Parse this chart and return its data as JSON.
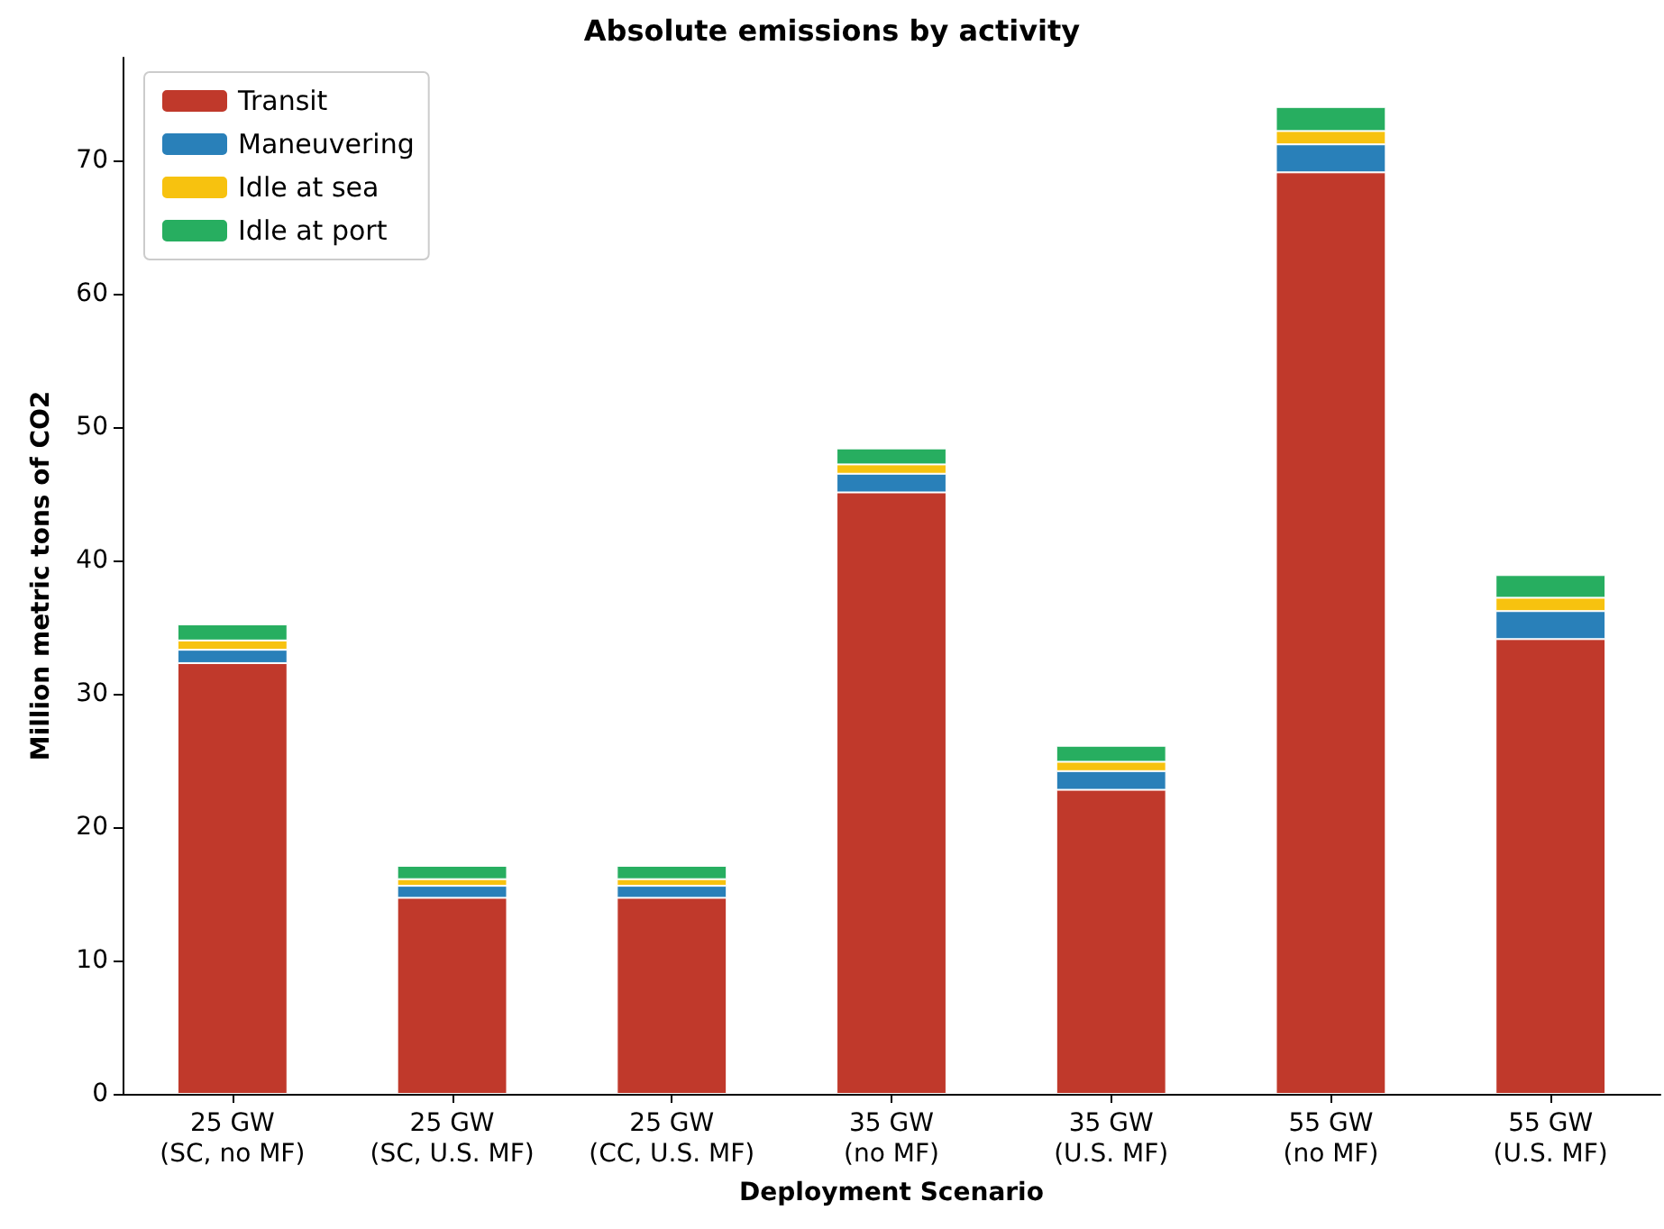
{
  "chart_data": {
    "type": "bar",
    "title": "Absolute emissions by activity",
    "xlabel": "Deployment Scenario",
    "ylabel": "Million metric tons of CO2",
    "categories": [
      "25 GW\n(SC, no MF)",
      "25 GW\n(SC, U.S. MF)",
      "25 GW\n(CC, U.S. MF)",
      "35 GW\n(no MF)",
      "35 GW\n(U.S. MF)",
      "55 GW\n(no MF)",
      "55 GW\n(U.S. MF)"
    ],
    "stacked": true,
    "series": [
      {
        "name": "Transit",
        "color": "#c0392b",
        "values": [
          32.3,
          14.7,
          14.7,
          45.1,
          22.8,
          69.1,
          34.1
        ]
      },
      {
        "name": "Maneuvering",
        "color": "#2980b9",
        "values": [
          1.0,
          0.9,
          0.9,
          1.4,
          1.4,
          2.1,
          2.1
        ]
      },
      {
        "name": "Idle at sea",
        "color": "#f7c20f",
        "values": [
          0.7,
          0.5,
          0.5,
          0.7,
          0.7,
          1.0,
          1.0
        ]
      },
      {
        "name": "Idle at port",
        "color": "#27ae60",
        "values": [
          1.2,
          1.0,
          1.0,
          1.2,
          1.2,
          1.8,
          1.7
        ]
      }
    ],
    "ylim": [
      0,
      77.7
    ],
    "yticks": [
      0,
      10,
      20,
      30,
      40,
      50,
      60,
      70
    ],
    "grid": false,
    "legend": "top left"
  }
}
